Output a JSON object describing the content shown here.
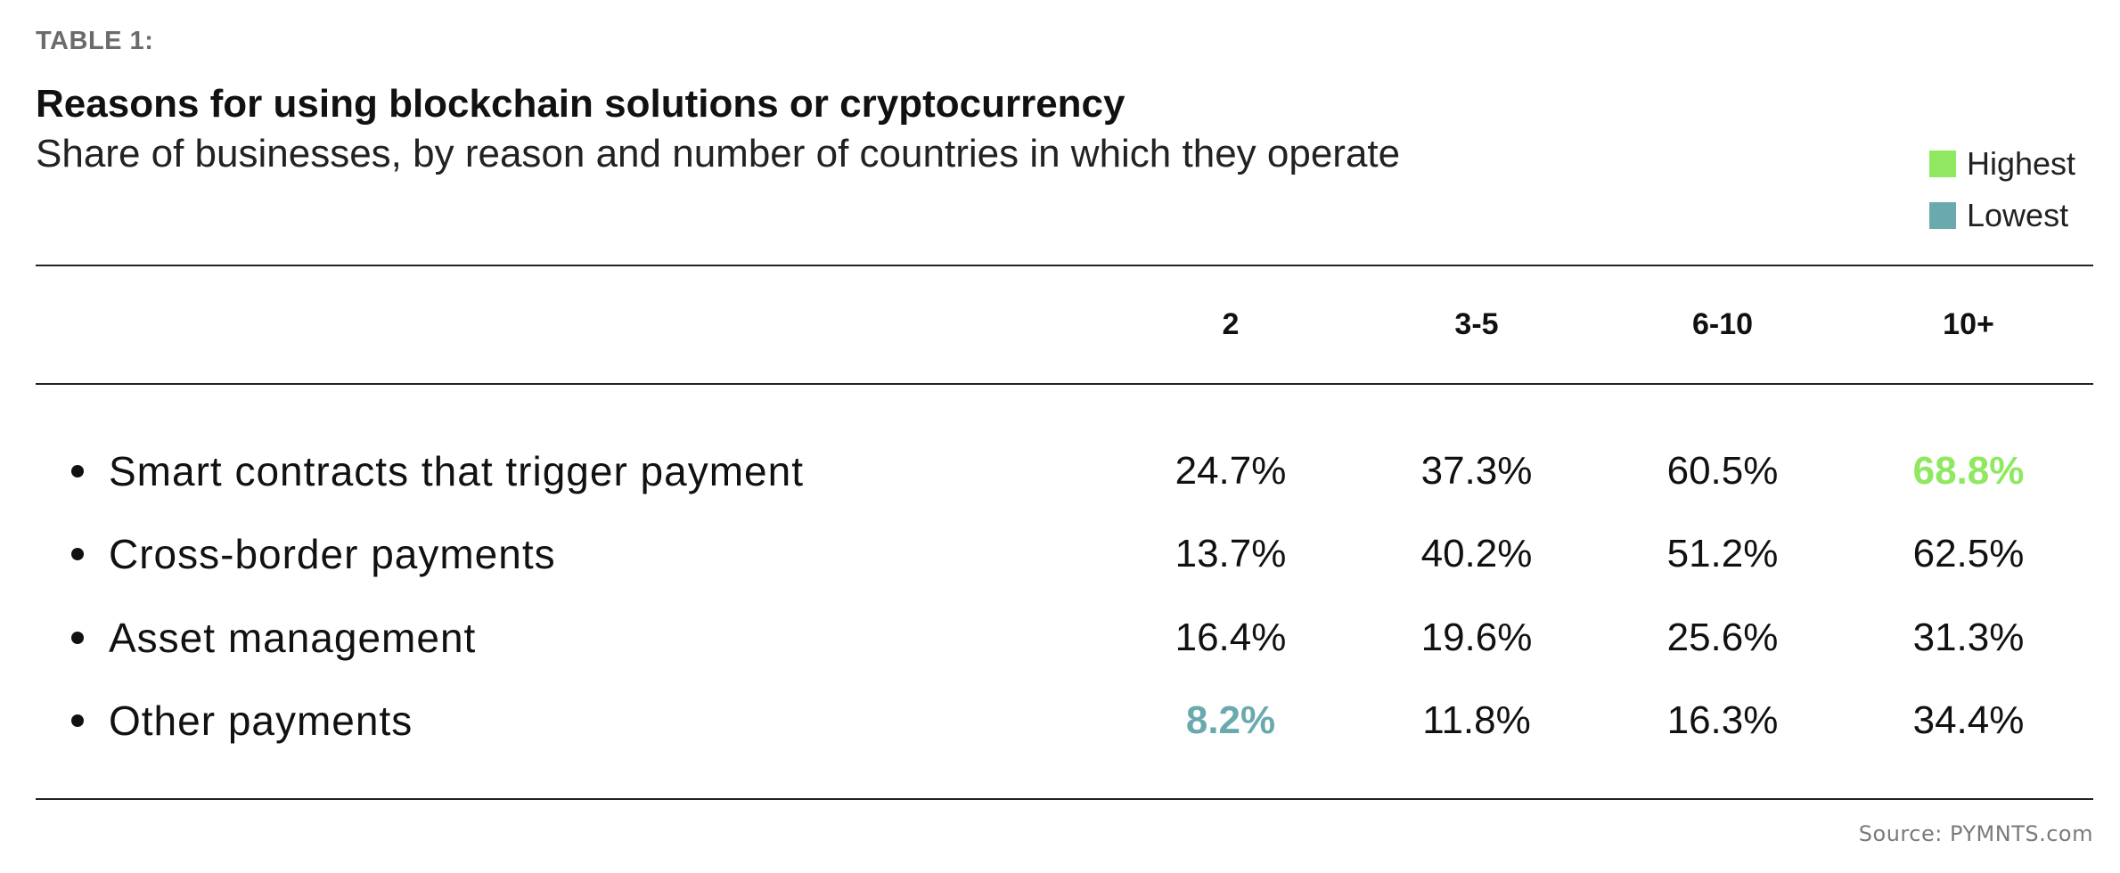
{
  "header": {
    "eyebrow": "TABLE 1:",
    "title": "Reasons for using blockchain solutions or cryptocurrency",
    "subtitle": "Share of businesses, by reason and number of countries in which they operate"
  },
  "legend": [
    {
      "label": "Highest",
      "color": "#8fe85f"
    },
    {
      "label": "Lowest",
      "color": "#6aa9ae"
    }
  ],
  "chart_data": {
    "type": "table",
    "columns": [
      "2",
      "3-5",
      "6-10",
      "10+"
    ],
    "rows": [
      {
        "label": "Smart contracts that trigger payment",
        "values": [
          "24.7%",
          "37.3%",
          "60.5%",
          "68.8%"
        ],
        "highlight": [
          null,
          null,
          null,
          "highest"
        ]
      },
      {
        "label": "Cross-border payments",
        "values": [
          "13.7%",
          "40.2%",
          "51.2%",
          "62.5%"
        ],
        "highlight": [
          null,
          null,
          null,
          null
        ]
      },
      {
        "label": "Asset management",
        "values": [
          "16.4%",
          "19.6%",
          "25.6%",
          "31.3%"
        ],
        "highlight": [
          null,
          null,
          null,
          null
        ]
      },
      {
        "label": "Other payments",
        "values": [
          "8.2%",
          "11.8%",
          "16.3%",
          "34.4%"
        ],
        "highlight": [
          "lowest",
          null,
          null,
          null
        ]
      }
    ]
  },
  "footer": {
    "source": "Source: PYMNTS.com"
  }
}
